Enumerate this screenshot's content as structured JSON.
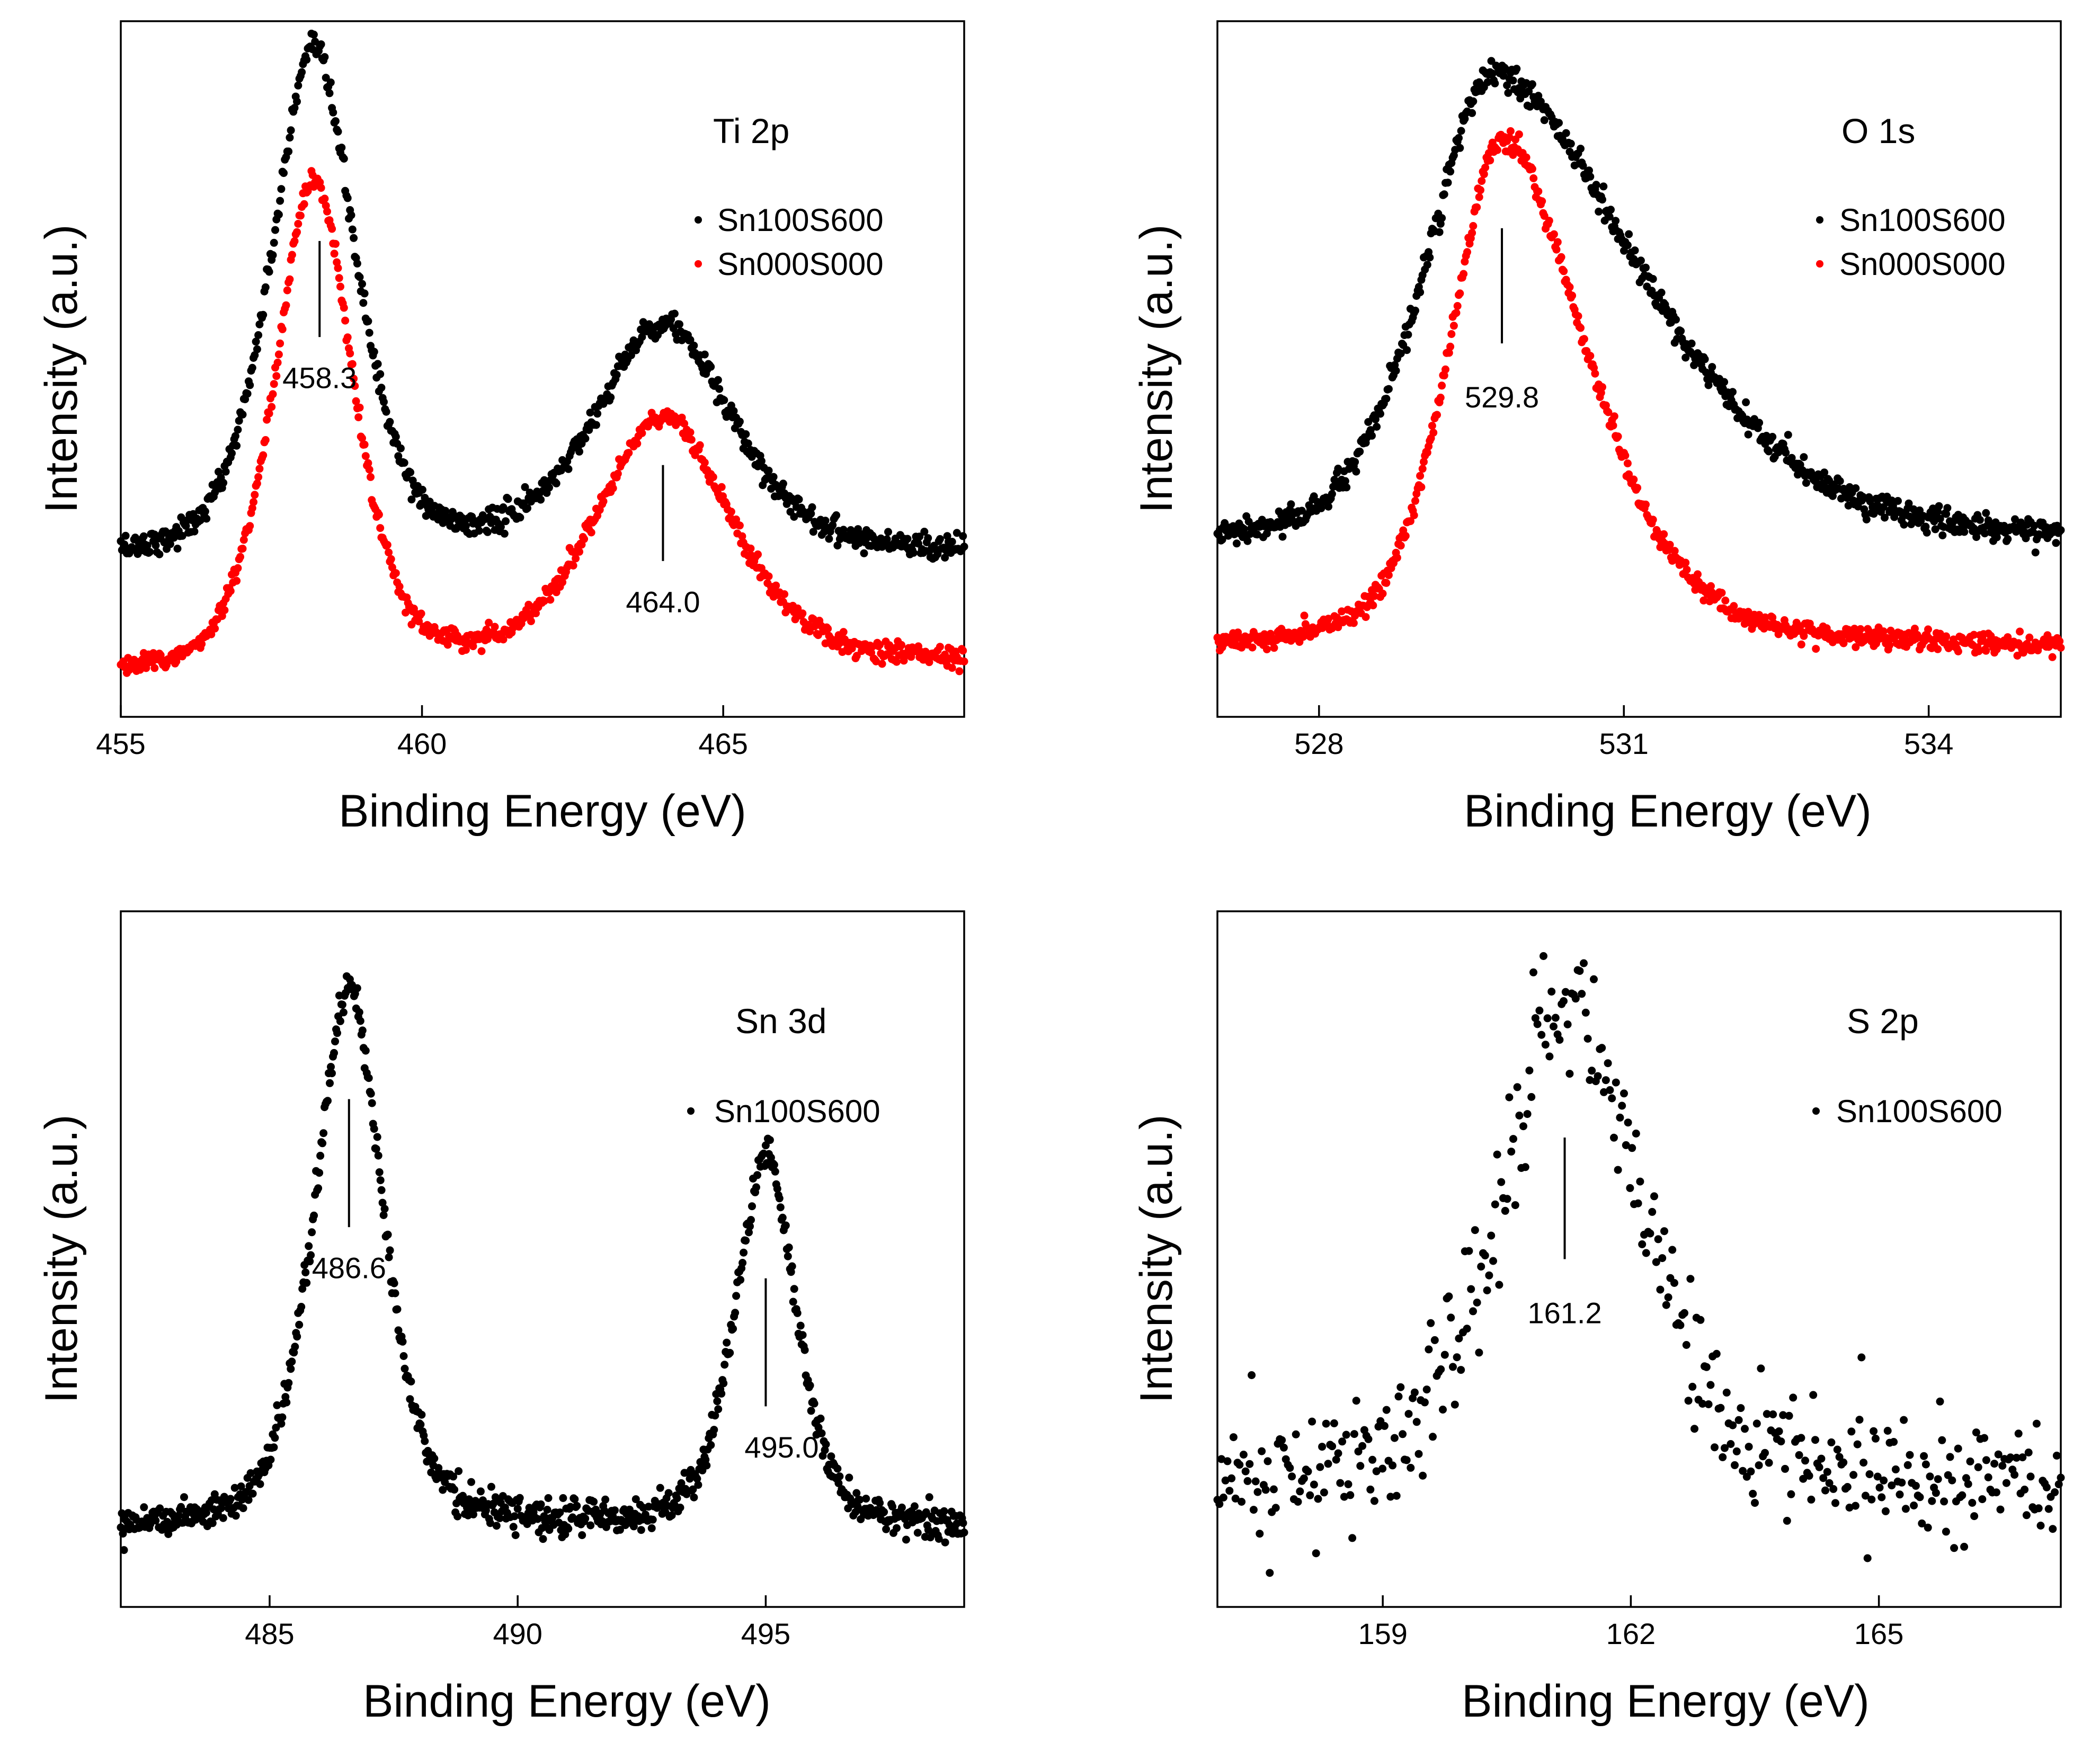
{
  "chart_data": [
    {
      "id": "ti2p",
      "type": "scatter",
      "title": "Ti 2p",
      "xlabel": "Binding Energy (eV)",
      "ylabel": "Intensity (a.u.)",
      "xlim": [
        455,
        469
      ],
      "ylim": [
        0,
        100
      ],
      "xticks": [
        455,
        460,
        465
      ],
      "xtick_labels": [
        "455",
        "460",
        "465"
      ],
      "legend": [
        {
          "name": "Sn100S600",
          "color": "#000000"
        },
        {
          "name": "Sn000S000",
          "color": "#ff0000"
        }
      ],
      "annotations": [
        {
          "text": "458.3",
          "x": 458.3,
          "mark_y": [
            55,
            70
          ],
          "label_y": 47,
          "label_dx": 0
        },
        {
          "text": "464.0",
          "x": 464.0,
          "mark_y": [
            20,
            35
          ],
          "label_y": 12,
          "label_dx": 0
        }
      ],
      "series": [
        {
          "name": "Sn100S600",
          "color": "#000000",
          "baseline": 20,
          "slope": 1.2,
          "noise": 1.0,
          "n": 700,
          "peaks": [
            {
              "c": 458.2,
              "a": 79,
              "w": 0.75
            },
            {
              "c": 464.0,
              "a": 36,
              "w": 1.2
            }
          ]
        },
        {
          "name": "Sn000S000",
          "color": "#ff0000",
          "baseline": 1.5,
          "slope": 2.6,
          "noise": 0.8,
          "n": 700,
          "peaks": [
            {
              "c": 458.2,
              "a": 77,
              "w": 0.7
            },
            {
              "c": 464.0,
              "a": 39,
              "w": 1.2
            }
          ]
        }
      ]
    },
    {
      "id": "o1s",
      "type": "scatter",
      "title": "O 1s",
      "xlabel": "Binding Energy (eV)",
      "ylabel": "Intensity (a.u.)",
      "xlim": [
        527,
        535.3
      ],
      "ylim": [
        0,
        100
      ],
      "xticks": [
        528,
        531,
        534
      ],
      "xtick_labels": [
        "528",
        "531",
        "534"
      ],
      "legend": [
        {
          "name": "Sn100S600",
          "color": "#000000"
        },
        {
          "name": "Sn000S000",
          "color": "#ff0000"
        }
      ],
      "annotations": [
        {
          "text": "529.8",
          "x": 529.8,
          "mark_y": [
            54,
            72
          ],
          "label_y": 44,
          "label_dx": 0
        }
      ],
      "series": [
        {
          "name": "Sn100S600",
          "color": "#000000",
          "baseline": 22,
          "slope": 0,
          "noise": 1.0,
          "n": 700,
          "skew": 2.2,
          "peaks": [
            {
              "c": 529.7,
              "a": 74,
              "w": 0.7
            }
          ]
        },
        {
          "name": "Sn000S000",
          "color": "#ff0000",
          "baseline": 6,
          "slope": 0,
          "noise": 0.8,
          "n": 700,
          "skew": 1.6,
          "peaks": [
            {
              "c": 529.8,
              "a": 80,
              "w": 0.55
            }
          ]
        }
      ]
    },
    {
      "id": "sn3d",
      "type": "scatter",
      "title": "Sn 3d",
      "xlabel": "Binding Energy (eV)",
      "ylabel": "Intensity (a.u.)",
      "xlim": [
        482,
        499
      ],
      "ylim": [
        0,
        100
      ],
      "xticks": [
        485,
        490,
        495
      ],
      "xtick_labels": [
        "485",
        "490",
        "495"
      ],
      "legend": [
        {
          "name": "Sn100S600",
          "color": "#000000"
        }
      ],
      "annotations": [
        {
          "text": "486.6",
          "x": 486.6,
          "mark_y": [
            55,
            75
          ],
          "label_y": 47,
          "label_dx": 0
        },
        {
          "text": "495.0",
          "x": 495.0,
          "mark_y": [
            27,
            47
          ],
          "label_y": 19,
          "label_dx": 30
        }
      ],
      "series": [
        {
          "name": "Sn100S600",
          "color": "#000000",
          "baseline": 8,
          "slope": 0,
          "noise": 1.3,
          "n": 800,
          "peaks": [
            {
              "c": 486.6,
              "a": 84,
              "w": 0.75
            },
            {
              "c": 495.0,
              "a": 58,
              "w": 0.65
            }
          ]
        }
      ]
    },
    {
      "id": "s2p",
      "type": "scatter",
      "title": "S 2p",
      "xlabel": "Binding Energy (eV)",
      "ylabel": "Intensity (a.u.)",
      "xlim": [
        157,
        167.2
      ],
      "ylim": [
        0,
        100
      ],
      "xticks": [
        159,
        162,
        165
      ],
      "xtick_labels": [
        "159",
        "162",
        "165"
      ],
      "legend": [
        {
          "name": "Sn100S600",
          "color": "#000000"
        }
      ],
      "annotations": [
        {
          "text": "161.2",
          "x": 161.2,
          "mark_y": [
            50,
            69
          ],
          "label_y": 40,
          "label_dx": 0
        }
      ],
      "series": [
        {
          "name": "Sn100S600",
          "color": "#000000",
          "baseline": 14,
          "slope": 0,
          "noise": 5.5,
          "n": 420,
          "peaks": [
            {
              "c": 161.3,
              "a": 78,
              "w": 0.9
            }
          ]
        }
      ]
    }
  ]
}
